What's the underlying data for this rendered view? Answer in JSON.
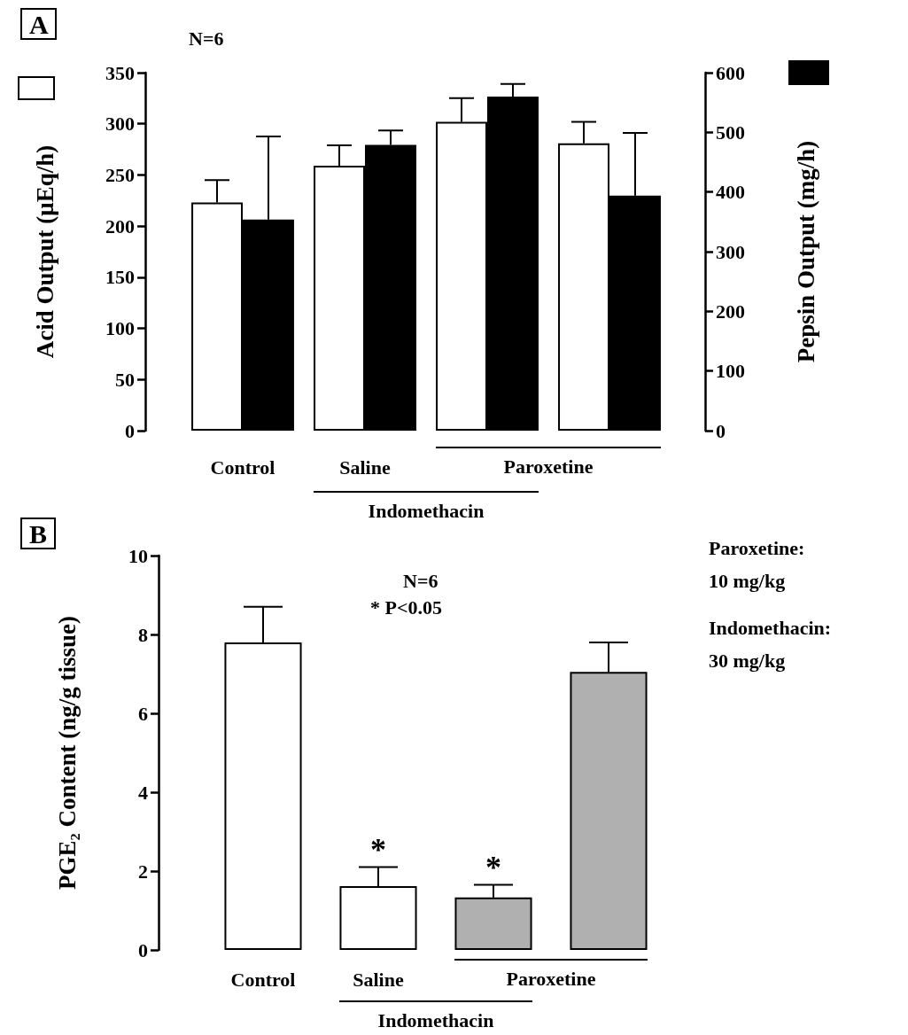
{
  "chart_data": [
    {
      "type": "bar",
      "title": "A",
      "ylabel": "Acid Output (μEq/h)",
      "y2label": "Pepsin Output (mg/h)",
      "categories": [
        "Control",
        "Saline",
        null,
        null
      ],
      "series": [
        {
          "color": "#ffffff",
          "values": [
            223,
            259,
            302,
            281
          ],
          "errors": [
            22,
            20,
            23,
            21
          ]
        },
        {
          "color": "#000000",
          "axis": "y2",
          "values": [
            354,
            479,
            560,
            394
          ],
          "errors": [
            139,
            24,
            21,
            105
          ]
        }
      ],
      "ylim": [
        0,
        350
      ],
      "yticks": [
        0,
        50,
        100,
        150,
        200,
        250,
        300,
        350
      ],
      "y2lim": [
        0,
        600
      ],
      "y2ticks": [
        0,
        100,
        200,
        300,
        400,
        500,
        600
      ],
      "annotations": [
        "N=6",
        "Paroxetine",
        "Indomethacin"
      ]
    },
    {
      "type": "bar",
      "title": "B",
      "ylabel": "PGE₂ Content (ng/g tissue)",
      "categories": [
        "Control",
        "Saline",
        null,
        null
      ],
      "values": [
        7.8,
        1.62,
        1.33,
        7.05
      ],
      "errors": [
        0.9,
        0.48,
        0.32,
        0.75
      ],
      "colors": [
        "#ffffff",
        "#ffffff",
        "#b0b0b0",
        "#b0b0b0"
      ],
      "value_labels": [
        null,
        "*",
        "*",
        null
      ],
      "ylim": [
        0,
        10
      ],
      "yticks": [
        0,
        2,
        4,
        6,
        8,
        10
      ],
      "annotations": [
        "N=6",
        "* P<0.05",
        "Paroxetine:",
        "10 mg/kg",
        "Indomethacin:",
        "30 mg/kg",
        "Paroxetine",
        "Indomethacin"
      ]
    }
  ]
}
